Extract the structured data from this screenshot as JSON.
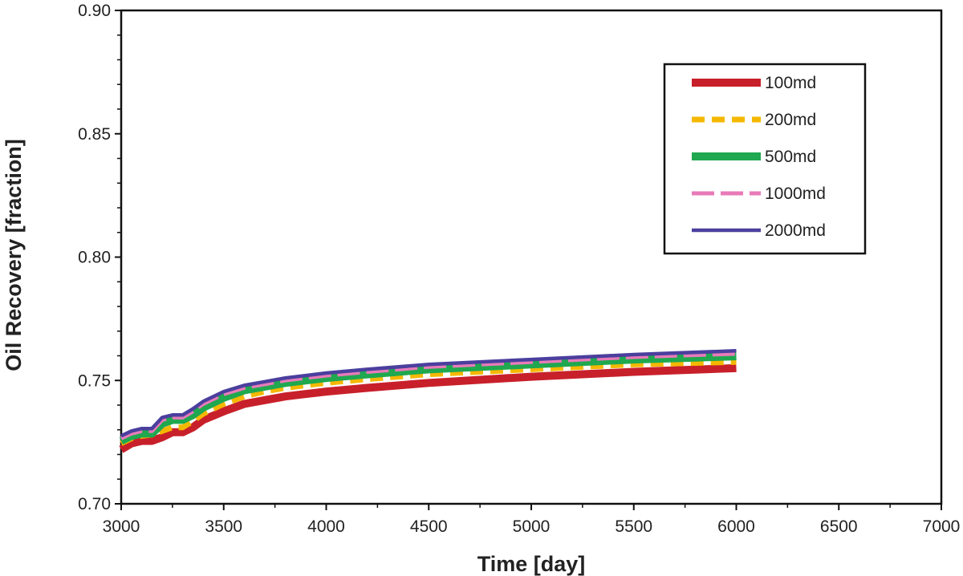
{
  "chart_data": {
    "type": "line",
    "title": "",
    "xlabel": "Time [day]",
    "ylabel": "Oil Recovery [fraction]",
    "xlim": [
      3000,
      7000
    ],
    "ylim": [
      0.7,
      0.9
    ],
    "xticks": [
      3000,
      3500,
      4000,
      4500,
      5000,
      5500,
      6000,
      6500,
      7000
    ],
    "yticks": [
      0.7,
      0.75,
      0.8,
      0.85,
      0.9
    ],
    "ytick_labels": [
      "0.70",
      "0.75",
      "0.80",
      "0.85",
      "0.90"
    ],
    "grid": false,
    "legend_position": "top-right",
    "x": [
      3000,
      3050,
      3100,
      3150,
      3200,
      3250,
      3300,
      3350,
      3400,
      3500,
      3600,
      3700,
      3800,
      4000,
      4200,
      4500,
      5000,
      5500,
      6000
    ],
    "series": [
      {
        "name": "100md",
        "color": "#c8202a",
        "style": "solid-thick",
        "values": [
          0.722,
          0.7245,
          0.7255,
          0.7255,
          0.727,
          0.729,
          0.729,
          0.731,
          0.734,
          0.7375,
          0.7405,
          0.742,
          0.7435,
          0.7455,
          0.747,
          0.749,
          0.7515,
          0.7535,
          0.755
        ]
      },
      {
        "name": "200md",
        "color": "#f5b800",
        "style": "dashed",
        "values": [
          0.7245,
          0.7265,
          0.7275,
          0.728,
          0.7295,
          0.731,
          0.731,
          0.7335,
          0.7365,
          0.7405,
          0.7435,
          0.7455,
          0.747,
          0.749,
          0.7505,
          0.7525,
          0.7545,
          0.7565,
          0.7575
        ]
      },
      {
        "name": "500md",
        "color": "#1fa84f",
        "style": "solid-thick",
        "values": [
          0.7255,
          0.7275,
          0.7285,
          0.7285,
          0.7325,
          0.734,
          0.734,
          0.736,
          0.739,
          0.743,
          0.746,
          0.7475,
          0.749,
          0.751,
          0.7525,
          0.7545,
          0.7565,
          0.7585,
          0.7598
        ]
      },
      {
        "name": "1000md",
        "color": "#e87bb9",
        "style": "dashed-long",
        "values": [
          0.7265,
          0.7285,
          0.7295,
          0.7295,
          0.734,
          0.735,
          0.735,
          0.7375,
          0.7405,
          0.7445,
          0.747,
          0.7485,
          0.75,
          0.752,
          0.7535,
          0.7555,
          0.7575,
          0.7595,
          0.7608
        ]
      },
      {
        "name": "2000md",
        "color": "#4b3f9e",
        "style": "solid-thin",
        "values": [
          0.7275,
          0.7295,
          0.7305,
          0.7305,
          0.735,
          0.736,
          0.736,
          0.7385,
          0.7415,
          0.7455,
          0.748,
          0.7495,
          0.751,
          0.753,
          0.7545,
          0.7565,
          0.7585,
          0.7605,
          0.762
        ]
      }
    ]
  }
}
